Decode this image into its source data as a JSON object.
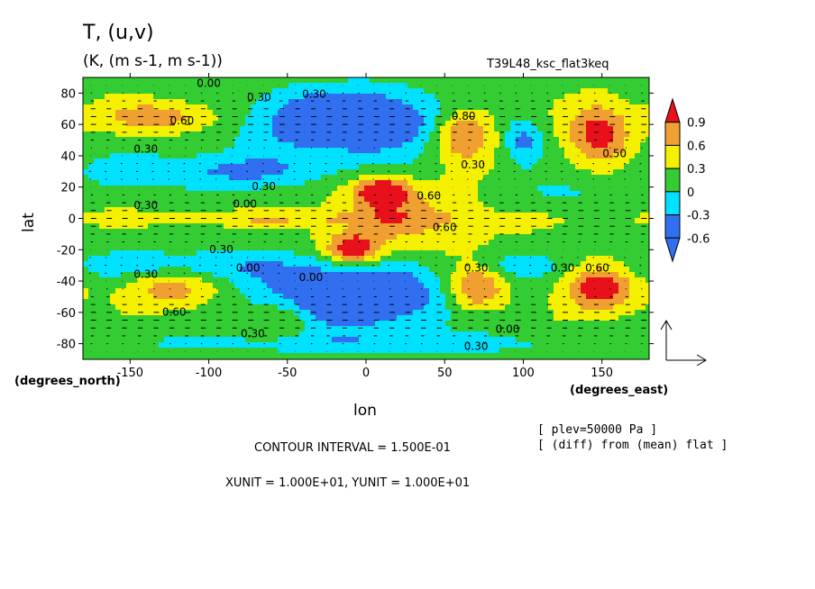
{
  "figure": {
    "title": "T,  (u,v)",
    "units": "(K, (m s-1, m s-1))",
    "experiment": "T39L48_ksc_flat3keq",
    "y_axis_label": "lat",
    "x_axis_label": "lon",
    "y_unit_label": "(degrees_north)",
    "x_unit_label": "(degrees_east)",
    "plev_note": "[ plev=50000 Pa ]",
    "diff_note": "[ (diff) from (mean) flat ]",
    "contour_interval": "CONTOUR INTERVAL = 1.500E-01",
    "units_line": "XUNIT = 1.000E+01, YUNIT = 1.000E+01"
  },
  "chart_data": {
    "type": "heatmap",
    "title": "T,  (u,v)",
    "xlabel": "lon",
    "ylabel": "lat",
    "xlim": [
      -180,
      180
    ],
    "ylim": [
      -90,
      90
    ],
    "x_ticks": [
      -150,
      -100,
      -50,
      0,
      50,
      100,
      150
    ],
    "y_ticks": [
      80,
      60,
      40,
      20,
      0,
      -20,
      -40,
      -60,
      -80
    ],
    "colorbar": {
      "levels": [
        0.9,
        0.6,
        0.3,
        0,
        -0.3,
        -0.6
      ],
      "labels": [
        "0.9",
        "0.6",
        "0.3",
        "0",
        "-0.3",
        "-0.6"
      ],
      "colors": [
        "#e8101a",
        "#f0a030",
        "#f5f000",
        "#33cc33",
        "#00e0ff",
        "#3070f0"
      ]
    },
    "contour_labels": [
      {
        "text": "0.00",
        "lon": -100,
        "lat": 84
      },
      {
        "text": "0.30",
        "lon": -68,
        "lat": 75
      },
      {
        "text": "0.30",
        "lon": -33,
        "lat": 77
      },
      {
        "text": "0.60",
        "lon": -117,
        "lat": 60
      },
      {
        "text": "0.30",
        "lon": -140,
        "lat": 42
      },
      {
        "text": "0.30",
        "lon": -65,
        "lat": 18
      },
      {
        "text": "0.30",
        "lon": -140,
        "lat": 6
      },
      {
        "text": "0.00",
        "lon": -77,
        "lat": 7
      },
      {
        "text": "0.60",
        "lon": 40,
        "lat": 12
      },
      {
        "text": "0.60",
        "lon": 50,
        "lat": -8
      },
      {
        "text": "0.80",
        "lon": 62,
        "lat": 63
      },
      {
        "text": "0.30",
        "lon": 68,
        "lat": 32
      },
      {
        "text": "0.50",
        "lon": 158,
        "lat": 39
      },
      {
        "text": "0.30",
        "lon": -92,
        "lat": -22
      },
      {
        "text": "0.00",
        "lon": -75,
        "lat": -34
      },
      {
        "text": "0.30",
        "lon": -140,
        "lat": -38
      },
      {
        "text": "0.60",
        "lon": -122,
        "lat": -62
      },
      {
        "text": "0.30",
        "lon": -72,
        "lat": -76
      },
      {
        "text": "0.00",
        "lon": -35,
        "lat": -40
      },
      {
        "text": "0.30",
        "lon": 70,
        "lat": -34
      },
      {
        "text": "0.30",
        "lon": 125,
        "lat": -34
      },
      {
        "text": "0.60",
        "lon": 147,
        "lat": -34
      },
      {
        "text": "0.00",
        "lon": 90,
        "lat": -73
      },
      {
        "text": "0.30",
        "lon": 70,
        "lat": -84
      }
    ],
    "reference_vector": {
      "x_unit": 10,
      "y_unit": 10
    }
  }
}
